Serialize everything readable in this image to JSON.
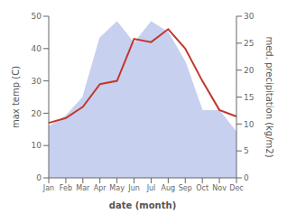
{
  "chart_data": {
    "type": "line",
    "categories": [
      "Jan",
      "Feb",
      "Mar",
      "Apr",
      "May",
      "Jun",
      "Jul",
      "Aug",
      "Sep",
      "Oct",
      "Nov",
      "Dec"
    ],
    "series": [
      {
        "type": "area",
        "color": "#c8d0f0",
        "axis": "y2",
        "values": [
          9.5,
          11.5,
          15,
          26,
          29,
          25,
          29,
          27,
          21.5,
          12.5,
          12.5,
          8.5
        ]
      },
      {
        "type": "line",
        "color": "#c0392b",
        "values": [
          17,
          18.5,
          22,
          29,
          30,
          43,
          42,
          46,
          40,
          30,
          21,
          19
        ]
      }
    ],
    "xlabel": "date (month)",
    "ylabel": "max temp (C)",
    "y2label": "med. precipitation (kg/m2)",
    "ylim": [
      0,
      50
    ],
    "yticks": [
      0,
      10,
      20,
      30,
      40,
      50
    ],
    "y2lim": [
      0,
      30
    ],
    "y2ticks": [
      0,
      5,
      10,
      15,
      20,
      25,
      30
    ],
    "grid": false
  }
}
